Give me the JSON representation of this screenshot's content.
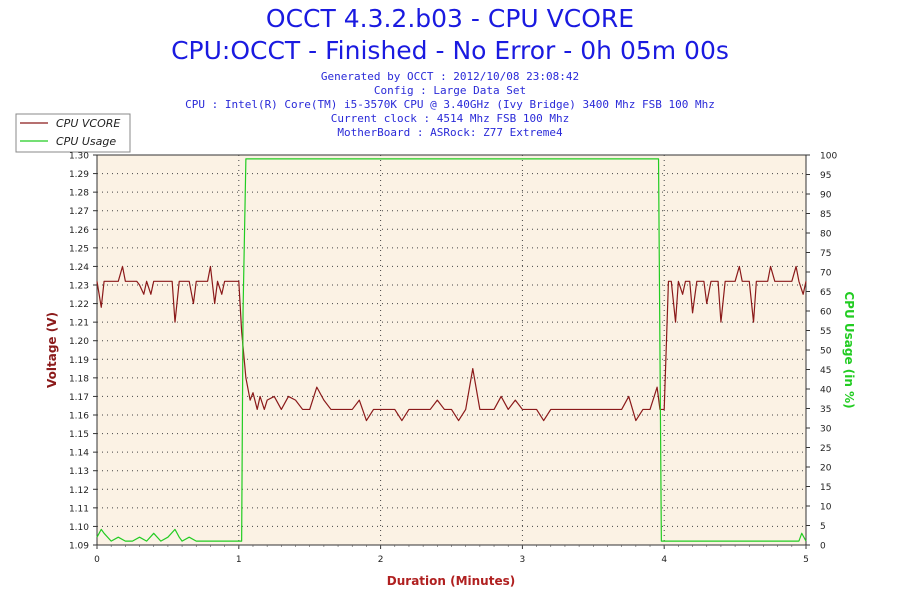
{
  "title": "OCCT 4.3.2.b03 - CPU VCORE",
  "subtitle": "CPU:OCCT - Finished - No Error - 0h 05m 00s",
  "info_lines": [
    "Generated by OCCT : 2012/10/08 23:08:42",
    "Config : Large Data Set",
    "CPU : Intel(R) Core(TM) i5-3570K CPU @ 3.40GHz (Ivy Bridge) 3400 Mhz FSB 100 Mhz",
    "Current clock : 4514 Mhz FSB 100 Mhz",
    "MotherBoard : ASRock: Z77 Extreme4"
  ],
  "colors": {
    "vcore": "#8b1a1a",
    "usage": "#22cc22",
    "title": "#1a1ae0",
    "plot_bg": "#fbf2e4",
    "axis_label_left": "#8b1a1a",
    "axis_label_right": "#22cc22",
    "axis_label_bottom": "#b02020"
  },
  "chart_data": {
    "type": "line",
    "xlabel": "Duration (Minutes)",
    "ylabel": "Voltage (V)",
    "y2label": "CPU Usage (in %)",
    "xlim": [
      0,
      5
    ],
    "ylim": [
      1.09,
      1.3
    ],
    "y2lim": [
      0,
      100
    ],
    "x_ticks": [
      "0",
      "1",
      "2",
      "3",
      "4",
      "5"
    ],
    "y_ticks": [
      "1.09",
      "1.10",
      "1.11",
      "1.12",
      "1.13",
      "1.14",
      "1.15",
      "1.16",
      "1.17",
      "1.18",
      "1.19",
      "1.20",
      "1.21",
      "1.22",
      "1.23",
      "1.24",
      "1.25",
      "1.26",
      "1.27",
      "1.28",
      "1.29",
      "1.30"
    ],
    "y2_ticks": [
      "0",
      "5",
      "10",
      "15",
      "20",
      "25",
      "30",
      "35",
      "40",
      "45",
      "50",
      "55",
      "60",
      "65",
      "70",
      "75",
      "80",
      "85",
      "90",
      "95",
      "100"
    ],
    "grid": true,
    "legend_position": "top-left",
    "series": [
      {
        "name": "CPU VCORE",
        "axis": "left",
        "x": [
          0,
          0.03,
          0.05,
          0.08,
          0.1,
          0.13,
          0.15,
          0.18,
          0.2,
          0.22,
          0.25,
          0.28,
          0.3,
          0.33,
          0.35,
          0.38,
          0.4,
          0.43,
          0.45,
          0.48,
          0.5,
          0.53,
          0.55,
          0.58,
          0.6,
          0.63,
          0.65,
          0.68,
          0.7,
          0.73,
          0.75,
          0.78,
          0.8,
          0.83,
          0.85,
          0.88,
          0.9,
          0.93,
          0.95,
          0.98,
          1.0,
          1.02,
          1.05,
          1.08,
          1.1,
          1.13,
          1.15,
          1.18,
          1.2,
          1.25,
          1.3,
          1.35,
          1.4,
          1.45,
          1.5,
          1.55,
          1.6,
          1.65,
          1.7,
          1.75,
          1.8,
          1.85,
          1.9,
          1.95,
          2.0,
          2.05,
          2.1,
          2.15,
          2.2,
          2.25,
          2.3,
          2.35,
          2.4,
          2.45,
          2.5,
          2.55,
          2.6,
          2.65,
          2.7,
          2.75,
          2.8,
          2.85,
          2.9,
          2.95,
          3.0,
          3.05,
          3.1,
          3.15,
          3.2,
          3.25,
          3.3,
          3.35,
          3.4,
          3.45,
          3.5,
          3.55,
          3.6,
          3.65,
          3.7,
          3.75,
          3.8,
          3.85,
          3.9,
          3.95,
          3.97,
          4.0,
          4.03,
          4.05,
          4.08,
          4.1,
          4.13,
          4.15,
          4.18,
          4.2,
          4.23,
          4.25,
          4.28,
          4.3,
          4.33,
          4.35,
          4.38,
          4.4,
          4.43,
          4.45,
          4.48,
          4.5,
          4.53,
          4.55,
          4.58,
          4.6,
          4.63,
          4.65,
          4.68,
          4.7,
          4.73,
          4.75,
          4.78,
          4.8,
          4.83,
          4.85,
          4.88,
          4.9,
          4.93,
          4.95,
          4.98,
          5.0
        ],
        "values": [
          1.232,
          1.218,
          1.232,
          1.232,
          1.232,
          1.232,
          1.232,
          1.24,
          1.232,
          1.232,
          1.232,
          1.232,
          1.23,
          1.225,
          1.232,
          1.225,
          1.232,
          1.232,
          1.232,
          1.232,
          1.232,
          1.232,
          1.21,
          1.232,
          1.232,
          1.232,
          1.232,
          1.22,
          1.232,
          1.232,
          1.232,
          1.232,
          1.24,
          1.22,
          1.232,
          1.225,
          1.232,
          1.232,
          1.232,
          1.232,
          1.232,
          1.205,
          1.18,
          1.168,
          1.172,
          1.163,
          1.17,
          1.163,
          1.168,
          1.17,
          1.163,
          1.17,
          1.168,
          1.163,
          1.163,
          1.175,
          1.168,
          1.163,
          1.163,
          1.163,
          1.163,
          1.168,
          1.157,
          1.163,
          1.163,
          1.163,
          1.163,
          1.157,
          1.163,
          1.163,
          1.163,
          1.163,
          1.168,
          1.163,
          1.163,
          1.157,
          1.163,
          1.185,
          1.163,
          1.163,
          1.163,
          1.17,
          1.163,
          1.168,
          1.163,
          1.163,
          1.163,
          1.157,
          1.163,
          1.163,
          1.163,
          1.163,
          1.163,
          1.163,
          1.163,
          1.163,
          1.163,
          1.163,
          1.163,
          1.17,
          1.157,
          1.163,
          1.163,
          1.175,
          1.163,
          1.163,
          1.232,
          1.232,
          1.21,
          1.232,
          1.225,
          1.232,
          1.232,
          1.215,
          1.232,
          1.232,
          1.232,
          1.22,
          1.232,
          1.232,
          1.232,
          1.21,
          1.232,
          1.232,
          1.232,
          1.232,
          1.24,
          1.232,
          1.232,
          1.232,
          1.21,
          1.232,
          1.232,
          1.232,
          1.232,
          1.24,
          1.232,
          1.232,
          1.232,
          1.232,
          1.232,
          1.232,
          1.24,
          1.232,
          1.225,
          1.232
        ]
      },
      {
        "name": "CPU Usage",
        "axis": "right",
        "x": [
          0,
          0.03,
          0.05,
          0.1,
          0.15,
          0.2,
          0.25,
          0.3,
          0.35,
          0.4,
          0.45,
          0.5,
          0.55,
          0.58,
          0.6,
          0.65,
          0.7,
          0.8,
          0.9,
          1.0,
          1.02,
          1.03,
          1.05,
          1.1,
          1.2,
          1.3,
          1.4,
          1.5,
          1.6,
          1.7,
          1.8,
          1.9,
          2.0,
          2.1,
          2.2,
          2.3,
          2.4,
          2.5,
          2.6,
          2.7,
          2.8,
          2.9,
          3.0,
          3.1,
          3.2,
          3.3,
          3.4,
          3.5,
          3.6,
          3.7,
          3.8,
          3.9,
          3.95,
          3.96,
          3.97,
          3.98,
          4.0,
          4.1,
          4.2,
          4.3,
          4.4,
          4.5,
          4.6,
          4.7,
          4.8,
          4.9,
          4.95,
          4.97,
          5.0
        ],
        "values": [
          2,
          4,
          3,
          1,
          2,
          1,
          1,
          2,
          1,
          3,
          1,
          2,
          4,
          2,
          1,
          2,
          1,
          1,
          1,
          1,
          1,
          60,
          99,
          99,
          99,
          99,
          99,
          99,
          99,
          99,
          99,
          99,
          99,
          99,
          99,
          99,
          99,
          99,
          99,
          99,
          99,
          99,
          99,
          99,
          99,
          99,
          99,
          99,
          99,
          99,
          99,
          99,
          99,
          99,
          50,
          1,
          1,
          1,
          1,
          1,
          1,
          1,
          1,
          1,
          1,
          1,
          1,
          3,
          1
        ]
      }
    ]
  }
}
